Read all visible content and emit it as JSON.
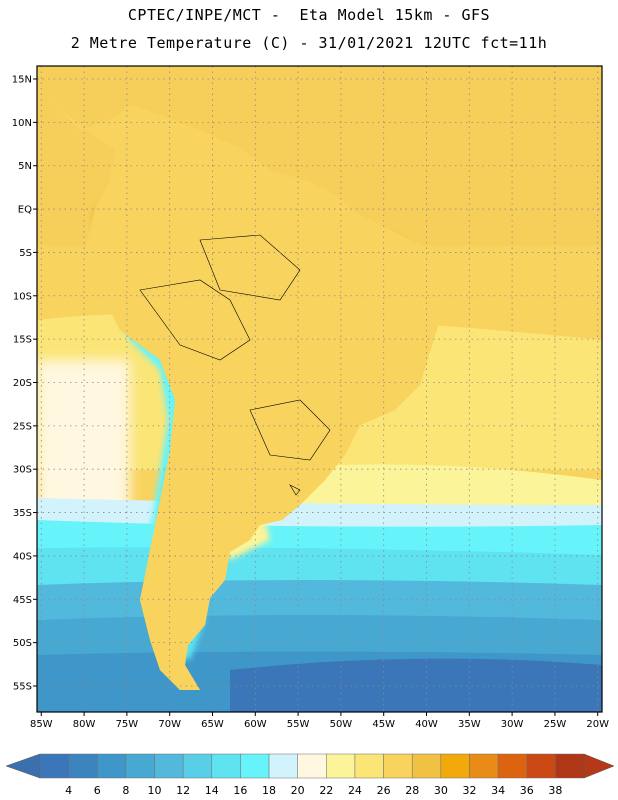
{
  "header": {
    "line1": "CPTEC/INPE/MCT -  Eta Model 15km - GFS",
    "line2": "2 Metre Temperature (C) - 31/01/2021 12UTC fct=11h"
  },
  "axes": {
    "lat_labels": [
      "15N",
      "10N",
      "5N",
      "EQ",
      "5S",
      "10S",
      "15S",
      "20S",
      "25S",
      "30S",
      "35S",
      "40S",
      "45S",
      "50S",
      "55S"
    ],
    "lon_labels": [
      "85W",
      "80W",
      "75W",
      "70W",
      "65W",
      "60W",
      "55W",
      "50W",
      "45W",
      "40W",
      "35W",
      "30W",
      "25W",
      "20W"
    ],
    "lat_range": [
      16.5,
      -58
    ],
    "lon_range": [
      -85.5,
      -19.5
    ]
  },
  "colorbar": {
    "labels": [
      "4",
      "6",
      "8",
      "10",
      "12",
      "14",
      "16",
      "18",
      "20",
      "22",
      "24",
      "26",
      "28",
      "30",
      "32",
      "34",
      "36",
      "38"
    ],
    "colors": [
      "#3a76b8",
      "#3c84be",
      "#3f96c8",
      "#47a8d2",
      "#52b9dc",
      "#58cfe6",
      "#5fe3f0",
      "#66f4fa",
      "#d2f3fb",
      "#fff7e0",
      "#fcf498",
      "#fbe577",
      "#f8d35e",
      "#f1c143",
      "#f2a90c",
      "#e88b17",
      "#dc6410",
      "#c94814",
      "#b03618"
    ],
    "under_color": "#3b6fae",
    "over_color": "#b53818"
  },
  "colors": {
    "frame": "#000000",
    "coast": "#000000",
    "grid": "#8a8a8a"
  }
}
